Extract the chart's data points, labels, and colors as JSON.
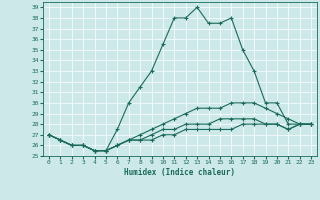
{
  "xlabel": "Humidex (Indice chaleur)",
  "ylabel": "",
  "bg_color": "#cce8e8",
  "grid_color": "#ffffff",
  "line_color": "#1a6b5a",
  "xlim": [
    -0.5,
    23.5
  ],
  "ylim": [
    25,
    39.5
  ],
  "yticks": [
    25,
    26,
    27,
    28,
    29,
    30,
    31,
    32,
    33,
    34,
    35,
    36,
    37,
    38,
    39
  ],
  "xticks": [
    0,
    1,
    2,
    3,
    4,
    5,
    6,
    7,
    8,
    9,
    10,
    11,
    12,
    13,
    14,
    15,
    16,
    17,
    18,
    19,
    20,
    21,
    22,
    23
  ],
  "series": [
    [
      27.0,
      26.5,
      26.0,
      26.0,
      25.5,
      25.5,
      27.5,
      30.0,
      31.5,
      33.0,
      35.5,
      38.0,
      38.0,
      39.0,
      37.5,
      37.5,
      38.0,
      35.0,
      33.0,
      30.0,
      30.0,
      28.0,
      28.0,
      28.0
    ],
    [
      27.0,
      26.5,
      26.0,
      26.0,
      25.5,
      25.5,
      26.0,
      26.5,
      27.0,
      27.5,
      28.0,
      28.5,
      29.0,
      29.5,
      29.5,
      29.5,
      30.0,
      30.0,
      30.0,
      29.5,
      29.0,
      28.5,
      28.0,
      28.0
    ],
    [
      27.0,
      26.5,
      26.0,
      26.0,
      25.5,
      25.5,
      26.0,
      26.5,
      26.5,
      27.0,
      27.5,
      27.5,
      28.0,
      28.0,
      28.0,
      28.5,
      28.5,
      28.5,
      28.5,
      28.0,
      28.0,
      27.5,
      28.0,
      28.0
    ],
    [
      27.0,
      26.5,
      26.0,
      26.0,
      25.5,
      25.5,
      26.0,
      26.5,
      26.5,
      26.5,
      27.0,
      27.0,
      27.5,
      27.5,
      27.5,
      27.5,
      27.5,
      28.0,
      28.0,
      28.0,
      28.0,
      27.5,
      28.0,
      28.0
    ]
  ]
}
